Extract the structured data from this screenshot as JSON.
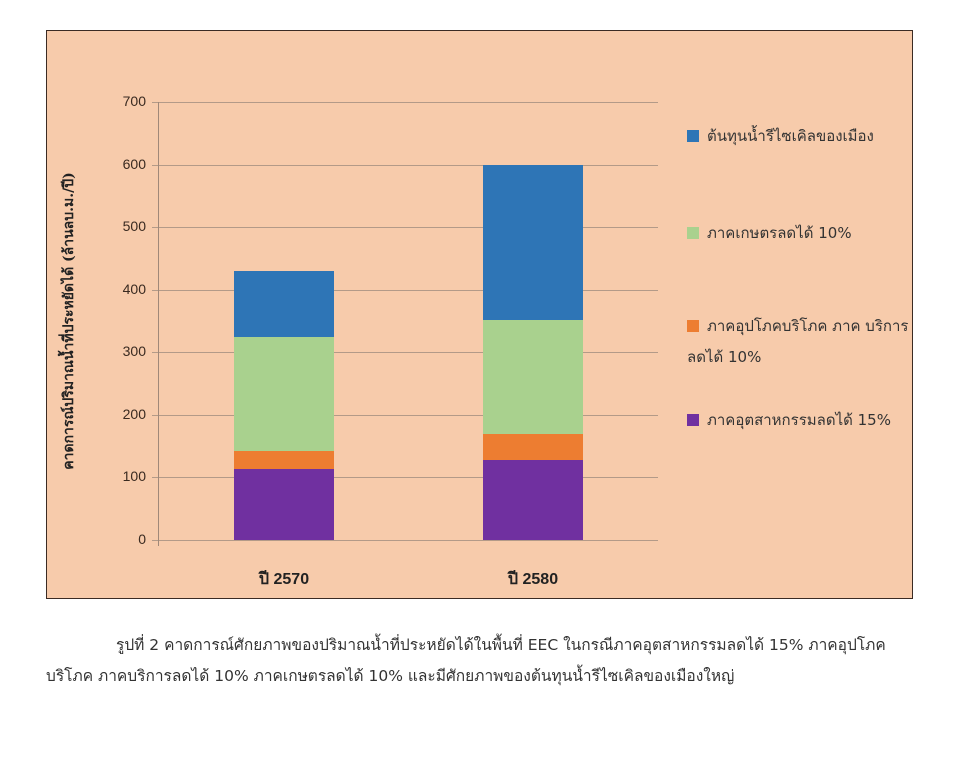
{
  "chart_data": {
    "type": "bar",
    "stacked": true,
    "title": "",
    "xlabel": "",
    "ylabel": "คาดการณ์ปริมาณน้ำที่ประหยัดได้ (ล้านลบ.ม./ปี)",
    "ylim": [
      0,
      700
    ],
    "yticks": [
      0,
      100,
      200,
      300,
      400,
      500,
      600,
      700
    ],
    "grid": true,
    "legend_position": "right",
    "categories": [
      "ปี 2570",
      "ปี 2580"
    ],
    "series": [
      {
        "name": "ภาคอุตสาหกรรมลดได้ 15%",
        "color": "#7030a0",
        "values": [
          113,
          128
        ]
      },
      {
        "name": "ภาคอุปโภคบริโภค ภาคบริการ ลดได้ 10%",
        "color": "#ed7d31",
        "values": [
          29,
          41
        ]
      },
      {
        "name": "ภาคเกษตรลดได้ 10%",
        "color": "#a9d18e",
        "values": [
          183,
          182
        ]
      },
      {
        "name": "ต้นทุนน้ำรีไซเคิลของเมือง",
        "color": "#2e75b6",
        "values": [
          105,
          249
        ]
      }
    ],
    "totals": [
      430,
      600
    ]
  },
  "legend": {
    "items": [
      {
        "label": "ต้นทุนน้ำรีไซเคิลของเมือง",
        "color": "#2e75b6"
      },
      {
        "label": "ภาคเกษตรลดได้ 10%",
        "color": "#a9d18e"
      },
      {
        "label": "ภาคอุปโภคบริโภค ภาค บริการ ลดได้ 10%",
        "color": "#ed7d31"
      },
      {
        "label": "ภาคอุตสาหกรรมลดได้ 15%",
        "color": "#7030a0"
      }
    ]
  },
  "axis": {
    "y_ticks": [
      "700",
      "600",
      "500",
      "400",
      "300",
      "200",
      "100",
      "0"
    ],
    "x_labels": [
      "ปี 2570",
      "ปี 2580"
    ]
  },
  "caption": {
    "text": "รูปที่ 2 คาดการณ์ศักยภาพของปริมาณน้ำที่ประหยัดได้ในพื้นที่ EEC ในกรณีภาคอุตสาหกรรมลดได้ 15%  ภาคอุปโภคบริโภค ภาคบริการลดได้ 10% ภาคเกษตรลดได้ 10%  และมีศักยภาพของต้นทุนน้ำรีไซเคิลของเมืองใหญ่"
  },
  "colors": {
    "chart_background": "#f7cbab",
    "border": "#3b2b24",
    "gridline": "#b39a88"
  }
}
